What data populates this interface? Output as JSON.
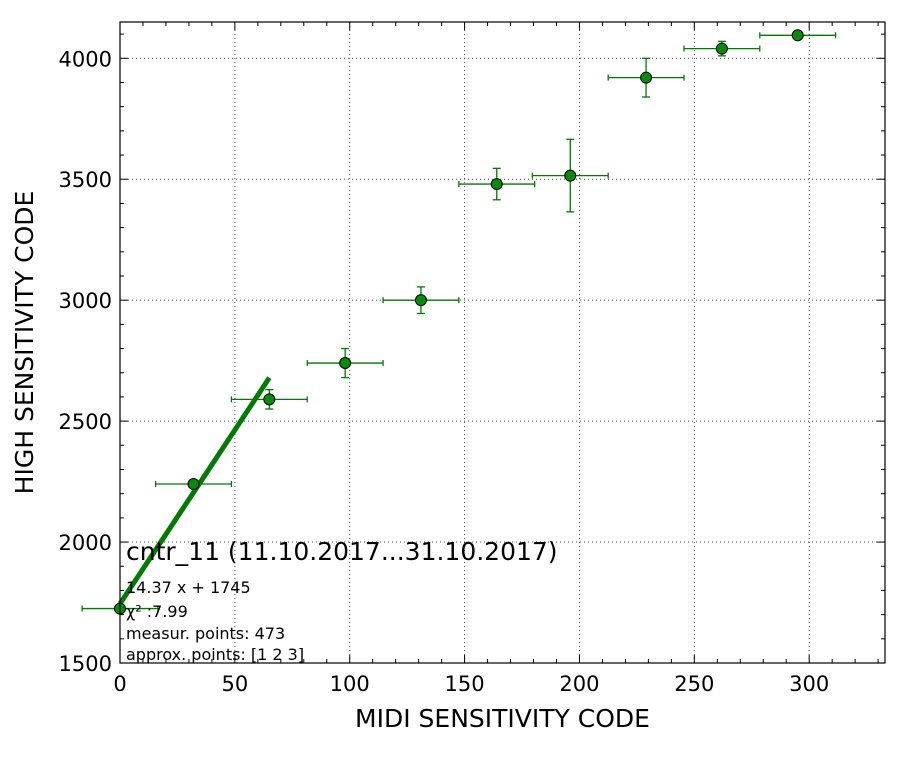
{
  "chart_data": {
    "type": "scatter",
    "xlabel": "MIDI SENSITIVITY CODE",
    "ylabel": "HIGH SENSITIVITY CODE",
    "xlim": [
      0,
      333
    ],
    "ylim": [
      1500,
      4150
    ],
    "xticks": [
      0,
      50,
      100,
      150,
      200,
      250,
      300
    ],
    "yticks": [
      1500,
      2000,
      2500,
      3000,
      3500,
      4000
    ],
    "grid": true,
    "colors": {
      "series": "#007a00",
      "marker_fill": "#0a8a0a",
      "fit": "#007a00"
    },
    "series": [
      {
        "points": [
          {
            "x": 0,
            "y": 1725,
            "xerr": 16.5,
            "yerr": 0
          },
          {
            "x": 32,
            "y": 2240,
            "xerr": 16.5,
            "yerr": 0
          },
          {
            "x": 65,
            "y": 2590,
            "xerr": 16.5,
            "yerr": 40
          },
          {
            "x": 98,
            "y": 2740,
            "xerr": 16.5,
            "yerr": 60
          },
          {
            "x": 131,
            "y": 3000,
            "xerr": 16.5,
            "yerr": 55
          },
          {
            "x": 164,
            "y": 3480,
            "xerr": 16.5,
            "yerr": 65
          },
          {
            "x": 196,
            "y": 3515,
            "xerr": 16.5,
            "yerr": 150
          },
          {
            "x": 229,
            "y": 3920,
            "xerr": 16.5,
            "yerr": 80
          },
          {
            "x": 262,
            "y": 4040,
            "xerr": 16.5,
            "yerr": 30
          },
          {
            "x": 295,
            "y": 4095,
            "xerr": 16.5,
            "yerr": 0
          }
        ]
      }
    ],
    "fit": {
      "slope": 14.37,
      "intercept": 1745,
      "x_range": [
        0,
        65
      ]
    },
    "annotation": {
      "title": "cntr_11 (11.10.2017...31.10.2017)",
      "lines": [
        "14.37 x + 1745",
        "χ² :7.99",
        "measur. points: 473",
        "approx. points: [1 2 3]"
      ]
    }
  }
}
